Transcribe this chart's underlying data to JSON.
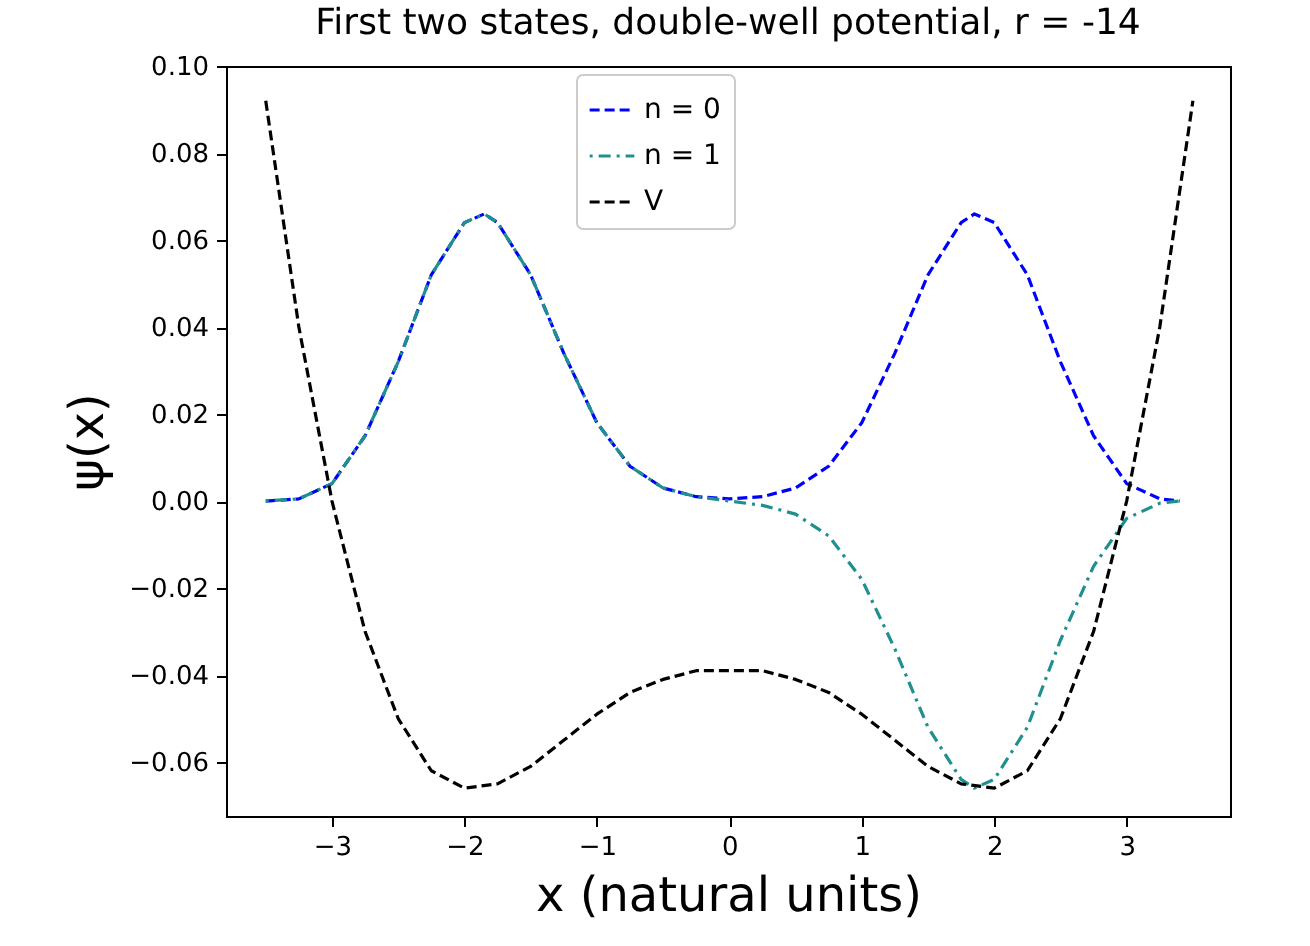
{
  "chart_data": {
    "type": "line",
    "title": "First two states, double-well potential, r = -14",
    "xlabel": "x (natural units)",
    "ylabel": "ψ(x)",
    "xlim": [
      -3.8,
      3.78
    ],
    "xticks": [
      -3,
      -2,
      -1,
      0,
      1,
      2,
      3
    ],
    "ylim": [
      -0.0724,
      0.1
    ],
    "yticks": [
      {
        "value": -0.06,
        "label": "−0.06"
      },
      {
        "value": -0.04,
        "label": "−0.04"
      },
      {
        "value": -0.02,
        "label": "−0.02"
      },
      {
        "value": 0,
        "label": "0.00"
      },
      {
        "value": 0.02,
        "label": "0.02"
      },
      {
        "value": 0.04,
        "label": "0.04"
      },
      {
        "value": 0.06,
        "label": "0.06"
      },
      {
        "value": 0.08,
        "label": "0.08"
      },
      {
        "value": 0.1,
        "label": "0.10"
      }
    ],
    "grid": false,
    "legend": "top",
    "marker": "none",
    "series": [
      {
        "name": "n = 0",
        "color": "#0000ff",
        "line_style": "dashed",
        "x": [
          -3.5,
          -3.25,
          -3,
          -2.75,
          -2.5,
          -2.25,
          -2,
          -1.85,
          -1.75,
          -1.5,
          -1.25,
          -1,
          -0.75,
          -0.5,
          -0.25,
          0,
          0.25,
          0.5,
          0.75,
          1,
          1.25,
          1.5,
          1.75,
          1.85,
          2,
          2.25,
          2.5,
          2.75,
          3,
          3.25,
          3.4
        ],
        "values": [
          0,
          0.0005,
          0.004,
          0.015,
          0.032,
          0.052,
          0.064,
          0.066,
          0.064,
          0.052,
          0.034,
          0.018,
          0.008,
          0.003,
          0.001,
          0.0005,
          0.001,
          0.003,
          0.008,
          0.018,
          0.034,
          0.052,
          0.064,
          0.066,
          0.064,
          0.052,
          0.032,
          0.015,
          0.004,
          0.0005,
          0
        ]
      },
      {
        "name": "n = 1",
        "color": "#1f8f8f",
        "line_style": "dashdot",
        "x": [
          -3.5,
          -3.25,
          -3,
          -2.75,
          -2.5,
          -2.25,
          -2,
          -1.85,
          -1.75,
          -1.5,
          -1.25,
          -1,
          -0.75,
          -0.5,
          -0.25,
          0,
          0.25,
          0.5,
          0.75,
          1,
          1.25,
          1.5,
          1.75,
          1.85,
          2,
          2.25,
          2.5,
          2.75,
          3,
          3.25,
          3.4
        ],
        "values": [
          0,
          0.0005,
          0.004,
          0.015,
          0.032,
          0.052,
          0.064,
          0.066,
          0.064,
          0.052,
          0.034,
          0.018,
          0.008,
          0.003,
          0.001,
          0,
          -0.001,
          -0.003,
          -0.008,
          -0.018,
          -0.034,
          -0.052,
          -0.064,
          -0.066,
          -0.064,
          -0.052,
          -0.032,
          -0.015,
          -0.004,
          -0.0005,
          0
        ]
      },
      {
        "name": "V",
        "color": "#000000",
        "line_style": "dashed",
        "x": [
          -3.5,
          -3.25,
          -3,
          -2.75,
          -2.5,
          -2.25,
          -2,
          -1.75,
          -1.5,
          -1.25,
          -1,
          -0.75,
          -0.5,
          -0.25,
          0,
          0.25,
          0.5,
          0.75,
          1,
          1.25,
          1.5,
          1.75,
          2,
          2.25,
          2.5,
          2.75,
          3,
          3.25,
          3.5
        ],
        "values": [
          0.092,
          0.04,
          0,
          -0.03,
          -0.05,
          -0.062,
          -0.066,
          -0.065,
          -0.061,
          -0.055,
          -0.049,
          -0.044,
          -0.041,
          -0.039,
          -0.039,
          -0.039,
          -0.041,
          -0.044,
          -0.049,
          -0.055,
          -0.061,
          -0.065,
          -0.066,
          -0.062,
          -0.05,
          -0.03,
          0,
          0.04,
          0.092
        ]
      }
    ]
  }
}
